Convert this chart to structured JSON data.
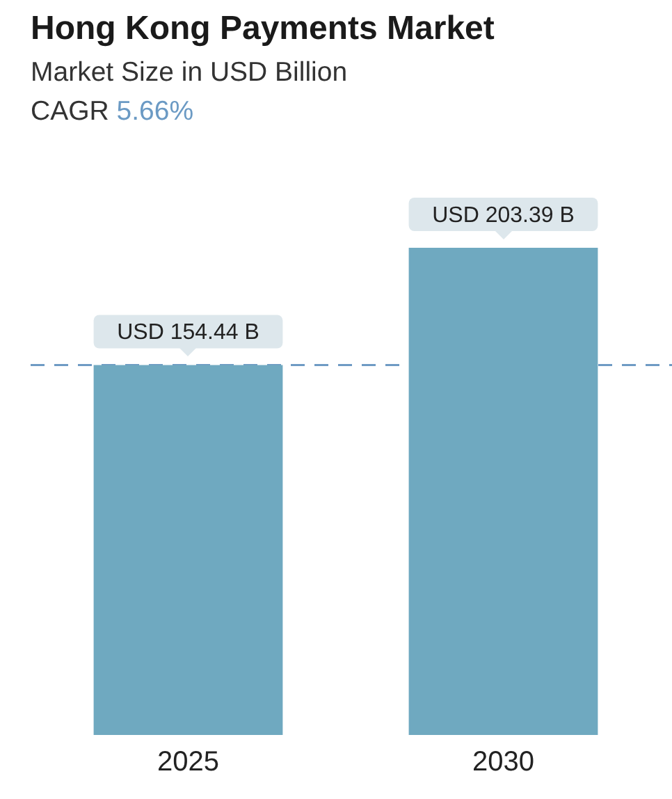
{
  "chart_data": {
    "type": "bar",
    "title": "Hong Kong Payments Market",
    "subtitle": "Market Size in USD Billion",
    "annotations": [
      "CAGR 5.66%"
    ],
    "categories": [
      "2025",
      "2030"
    ],
    "values": [
      154.44,
      203.39
    ],
    "color": "#6fa9c0",
    "value_labels": [
      "USD 154.44 B",
      "USD 203.39 B"
    ],
    "ref_lines": [
      {
        "axis": "y",
        "value": 154.44,
        "color": "#6f9bc4",
        "line_style": "dashed"
      }
    ]
  }
}
